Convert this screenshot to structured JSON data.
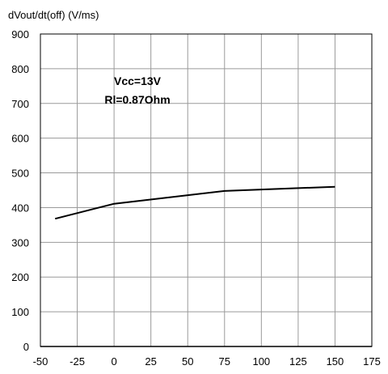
{
  "chart_data": {
    "type": "line",
    "ylabel": "dVout/dt(off) (V/ms)",
    "xlabel": "",
    "xlim": [
      -50,
      175
    ],
    "ylim": [
      0,
      900
    ],
    "x_ticks": [
      -50,
      -25,
      0,
      25,
      50,
      75,
      100,
      125,
      150,
      175
    ],
    "y_ticks": [
      0,
      100,
      200,
      300,
      400,
      500,
      600,
      700,
      800,
      900
    ],
    "grid": true,
    "annotations": [
      "Vcc=13V",
      "Rl=0.87Ohm"
    ],
    "series": [
      {
        "x": [
          -40,
          0,
          75,
          150
        ],
        "y": [
          368,
          411,
          448,
          460
        ]
      }
    ]
  }
}
